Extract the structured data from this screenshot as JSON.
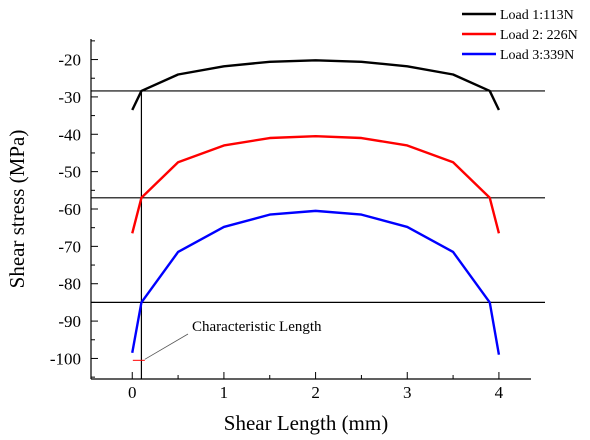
{
  "chart_data": {
    "type": "line",
    "xlabel": "Shear Length (mm)",
    "ylabel": "Shear stress (MPa)",
    "xlim": [
      -0.45,
      4.35
    ],
    "ylim": [
      -105.5,
      -14.5
    ],
    "x_ticks": [
      0,
      1,
      2,
      3,
      4
    ],
    "y_ticks": [
      -20,
      -30,
      -40,
      -50,
      -60,
      -70,
      -80,
      -90,
      -100
    ],
    "x_tick_labels": [
      "0",
      "1",
      "2",
      "3",
      "4"
    ],
    "y_tick_labels": [
      "-20",
      "-30",
      "-40",
      "-50",
      "-60",
      "-70",
      "-80",
      "-90",
      "-100"
    ],
    "grid": false,
    "legend_position": "top-right",
    "series": [
      {
        "name": "Load 1:113N",
        "color": "#000000",
        "x": [
          0.0,
          0.1,
          0.5,
          1.0,
          1.5,
          2.0,
          2.5,
          3.0,
          3.5,
          3.9,
          4.0
        ],
        "y": [
          -33.5,
          -28.4,
          -24.0,
          -21.8,
          -20.6,
          -20.2,
          -20.6,
          -21.8,
          -24.0,
          -28.4,
          -33.5
        ]
      },
      {
        "name": "Load 2: 226N",
        "color": "#ff0000",
        "x": [
          0.0,
          0.1,
          0.5,
          1.0,
          1.5,
          2.0,
          2.5,
          3.0,
          3.5,
          3.9,
          4.0
        ],
        "y": [
          -66.5,
          -57.0,
          -47.5,
          -43.0,
          -41.0,
          -40.5,
          -41.0,
          -43.0,
          -47.5,
          -57.0,
          -66.5
        ]
      },
      {
        "name": "Load 3:339N",
        "color": "#0000ff",
        "x": [
          0.0,
          0.1,
          0.5,
          1.0,
          1.5,
          2.0,
          2.5,
          3.0,
          3.5,
          3.9,
          4.0
        ],
        "y": [
          -98.5,
          -85.0,
          -71.5,
          -64.8,
          -61.5,
          -60.5,
          -61.5,
          -64.8,
          -71.5,
          -85.0,
          -99.0
        ]
      }
    ],
    "reference_lines_y": [
      -28.4,
      -57.0,
      -85.0
    ],
    "characteristic_length_x": 0.1,
    "annotation": {
      "text": "Characteristic Length",
      "point": [
        0.05,
        -100.5
      ]
    }
  }
}
